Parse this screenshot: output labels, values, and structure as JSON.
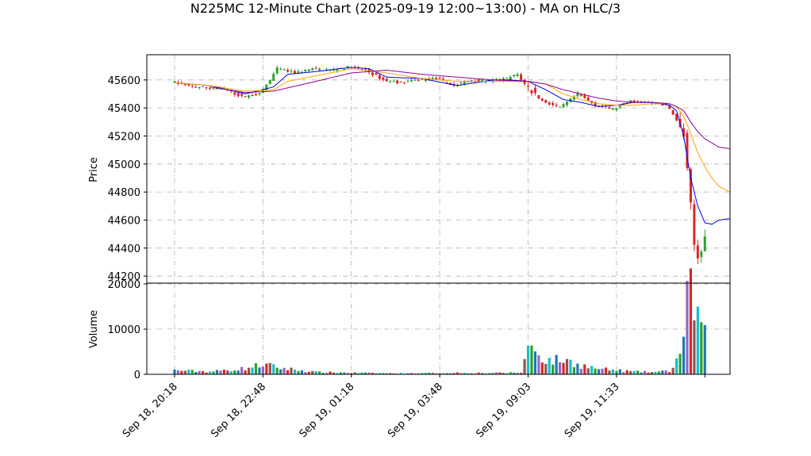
{
  "chart_data": {
    "type": "candlestick",
    "title": "N225MC 12-Minute Chart (2025-09-19 12:00~13:00) - MA on HLC/3",
    "price_panel": {
      "ylabel": "Price",
      "ylim": [
        44150,
        45780
      ],
      "yticks": [
        44200,
        44400,
        44600,
        44800,
        45000,
        45200,
        45400,
        45600
      ],
      "grid": true
    },
    "volume_panel": {
      "ylabel": "Volume",
      "ylim": [
        0,
        20000
      ],
      "yticks": [
        0,
        10000,
        20000
      ],
      "grid": true
    },
    "xticks": [
      "Sep 18, 20:18",
      "Sep 18, 22:48",
      "Sep 19, 01:18",
      "Sep 19, 03:48",
      "Sep 19, 09:03",
      "Sep 19, 11:33"
    ],
    "xtick_bar_index": [
      0,
      25,
      50,
      75,
      100,
      125
    ],
    "bar_count": 151,
    "candle_colors": {
      "up": "#2ca02c",
      "down": "#d62728"
    },
    "volume_colors": [
      "#1f77b4",
      "#9467bd",
      "#d62728",
      "#8c564b",
      "#17becf",
      "#2ca02c"
    ],
    "price_path": [
      [
        0,
        45590
      ],
      [
        5,
        45555
      ],
      [
        10,
        45545
      ],
      [
        15,
        45535
      ],
      [
        20,
        45480
      ],
      [
        25,
        45500
      ],
      [
        28,
        45600
      ],
      [
        30,
        45680
      ],
      [
        35,
        45650
      ],
      [
        40,
        45680
      ],
      [
        45,
        45670
      ],
      [
        50,
        45690
      ],
      [
        55,
        45670
      ],
      [
        60,
        45600
      ],
      [
        65,
        45580
      ],
      [
        70,
        45600
      ],
      [
        75,
        45610
      ],
      [
        80,
        45560
      ],
      [
        85,
        45600
      ],
      [
        90,
        45590
      ],
      [
        95,
        45610
      ],
      [
        98,
        45640
      ],
      [
        100,
        45570
      ],
      [
        105,
        45450
      ],
      [
        110,
        45400
      ],
      [
        115,
        45500
      ],
      [
        120,
        45420
      ],
      [
        125,
        45390
      ],
      [
        130,
        45450
      ],
      [
        135,
        45440
      ],
      [
        140,
        45420
      ],
      [
        142,
        45360
      ],
      [
        145,
        45200
      ],
      [
        147,
        44700
      ],
      [
        148,
        44420
      ],
      [
        149,
        44330
      ],
      [
        151,
        44480
      ],
      [
        153,
        44610
      ],
      [
        155,
        44760
      ],
      [
        157,
        44800
      ]
    ],
    "volume_path": [
      [
        0,
        900
      ],
      [
        10,
        600
      ],
      [
        20,
        1300
      ],
      [
        25,
        2200
      ],
      [
        30,
        1400
      ],
      [
        40,
        500
      ],
      [
        50,
        350
      ],
      [
        60,
        250
      ],
      [
        70,
        250
      ],
      [
        80,
        350
      ],
      [
        90,
        300
      ],
      [
        98,
        400
      ],
      [
        100,
        6000
      ],
      [
        102,
        5500
      ],
      [
        105,
        3000
      ],
      [
        110,
        3200
      ],
      [
        115,
        2000
      ],
      [
        120,
        1200
      ],
      [
        125,
        900
      ],
      [
        130,
        600
      ],
      [
        135,
        500
      ],
      [
        140,
        700
      ],
      [
        142,
        3000
      ],
      [
        144,
        8000
      ],
      [
        145,
        15000
      ],
      [
        146,
        17500
      ],
      [
        147,
        16000
      ],
      [
        148,
        13000
      ],
      [
        149,
        11000
      ],
      [
        150,
        8000
      ],
      [
        152,
        6000
      ],
      [
        154,
        5000
      ],
      [
        157,
        4200
      ]
    ],
    "series": [
      {
        "color": "#0000ee",
        "path": [
          [
            0,
            45580
          ],
          [
            10,
            45560
          ],
          [
            20,
            45500
          ],
          [
            28,
            45550
          ],
          [
            32,
            45640
          ],
          [
            40,
            45660
          ],
          [
            50,
            45690
          ],
          [
            55,
            45680
          ],
          [
            60,
            45620
          ],
          [
            70,
            45610
          ],
          [
            80,
            45560
          ],
          [
            85,
            45580
          ],
          [
            90,
            45600
          ],
          [
            95,
            45600
          ],
          [
            100,
            45590
          ],
          [
            105,
            45530
          ],
          [
            110,
            45460
          ],
          [
            115,
            45440
          ],
          [
            120,
            45410
          ],
          [
            125,
            45420
          ],
          [
            130,
            45440
          ],
          [
            135,
            45440
          ],
          [
            140,
            45420
          ],
          [
            142,
            45380
          ],
          [
            144,
            45200
          ],
          [
            146,
            44900
          ],
          [
            148,
            44700
          ],
          [
            150,
            44580
          ],
          [
            152,
            44570
          ],
          [
            154,
            44600
          ],
          [
            157,
            44610
          ]
        ]
      },
      {
        "color": "#ffa500",
        "path": [
          [
            0,
            45580
          ],
          [
            10,
            45560
          ],
          [
            20,
            45520
          ],
          [
            28,
            45530
          ],
          [
            32,
            45590
          ],
          [
            40,
            45630
          ],
          [
            50,
            45680
          ],
          [
            60,
            45650
          ],
          [
            70,
            45610
          ],
          [
            80,
            45590
          ],
          [
            90,
            45590
          ],
          [
            100,
            45590
          ],
          [
            105,
            45570
          ],
          [
            110,
            45500
          ],
          [
            115,
            45460
          ],
          [
            120,
            45430
          ],
          [
            125,
            45420
          ],
          [
            130,
            45420
          ],
          [
            135,
            45430
          ],
          [
            140,
            45430
          ],
          [
            142,
            45410
          ],
          [
            144,
            45340
          ],
          [
            146,
            45220
          ],
          [
            148,
            45080
          ],
          [
            150,
            44980
          ],
          [
            152,
            44900
          ],
          [
            154,
            44840
          ],
          [
            157,
            44800
          ]
        ]
      },
      {
        "color": "#8b008b",
        "path": [
          [
            10,
            45550
          ],
          [
            20,
            45510
          ],
          [
            28,
            45520
          ],
          [
            40,
            45590
          ],
          [
            50,
            45650
          ],
          [
            60,
            45670
          ],
          [
            70,
            45640
          ],
          [
            80,
            45620
          ],
          [
            90,
            45600
          ],
          [
            100,
            45590
          ],
          [
            105,
            45570
          ],
          [
            110,
            45530
          ],
          [
            115,
            45500
          ],
          [
            120,
            45470
          ],
          [
            125,
            45450
          ],
          [
            130,
            45440
          ],
          [
            135,
            45440
          ],
          [
            140,
            45430
          ],
          [
            142,
            45410
          ],
          [
            144,
            45380
          ],
          [
            146,
            45300
          ],
          [
            148,
            45230
          ],
          [
            150,
            45180
          ],
          [
            152,
            45150
          ],
          [
            154,
            45120
          ],
          [
            157,
            45110
          ]
        ]
      }
    ]
  }
}
